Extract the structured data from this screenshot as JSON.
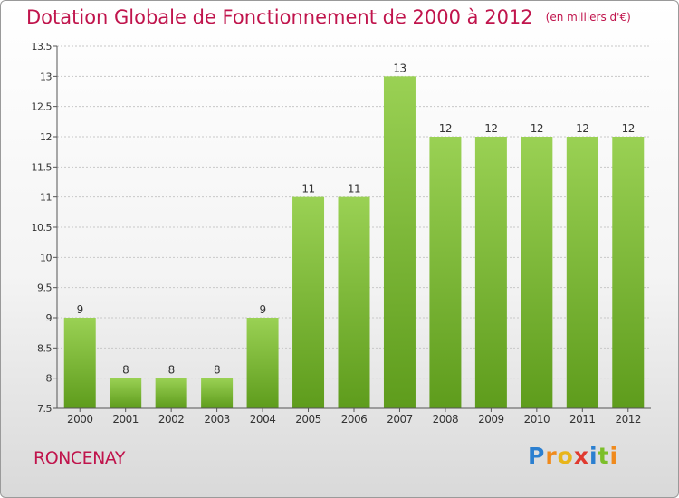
{
  "title": "Dotation Globale de Fonctionnement de 2000 à 2012",
  "subtitle": "(en milliers d'€)",
  "commune": "RONCENAY",
  "brand": {
    "letters": [
      {
        "ch": "P",
        "color": "#2b7fd0"
      },
      {
        "ch": "r",
        "color": "#f08a1c"
      },
      {
        "ch": "o",
        "color": "#e8b51a"
      },
      {
        "ch": "x",
        "color": "#e03a2f"
      },
      {
        "ch": "i",
        "color": "#2b7fd0"
      },
      {
        "ch": "t",
        "color": "#7cbf2a"
      },
      {
        "ch": "i",
        "color": "#f08a1c"
      }
    ]
  },
  "colors": {
    "title": "#c0144c",
    "bar_top": "#9ad154",
    "bar_bottom": "#5e9c1c",
    "axis": "#555555",
    "grid": "#c8c8c8"
  },
  "chart_data": {
    "type": "bar",
    "categories": [
      "2000",
      "2001",
      "2002",
      "2003",
      "2004",
      "2005",
      "2006",
      "2007",
      "2008",
      "2009",
      "2010",
      "2011",
      "2012"
    ],
    "values": [
      9,
      8,
      8,
      8,
      9,
      11,
      11,
      13,
      12,
      12,
      12,
      12,
      12
    ],
    "data_labels": [
      "9",
      "8",
      "8",
      "8",
      "9",
      "11",
      "11",
      "13",
      "12",
      "12",
      "12",
      "12",
      "12"
    ],
    "ylim": [
      7.5,
      13.5
    ],
    "yticks": [
      "7.5",
      "8",
      "8.5",
      "9",
      "9.5",
      "10",
      "10.5",
      "11",
      "11.5",
      "12",
      "12.5",
      "13",
      "13.5"
    ],
    "grid": true
  }
}
